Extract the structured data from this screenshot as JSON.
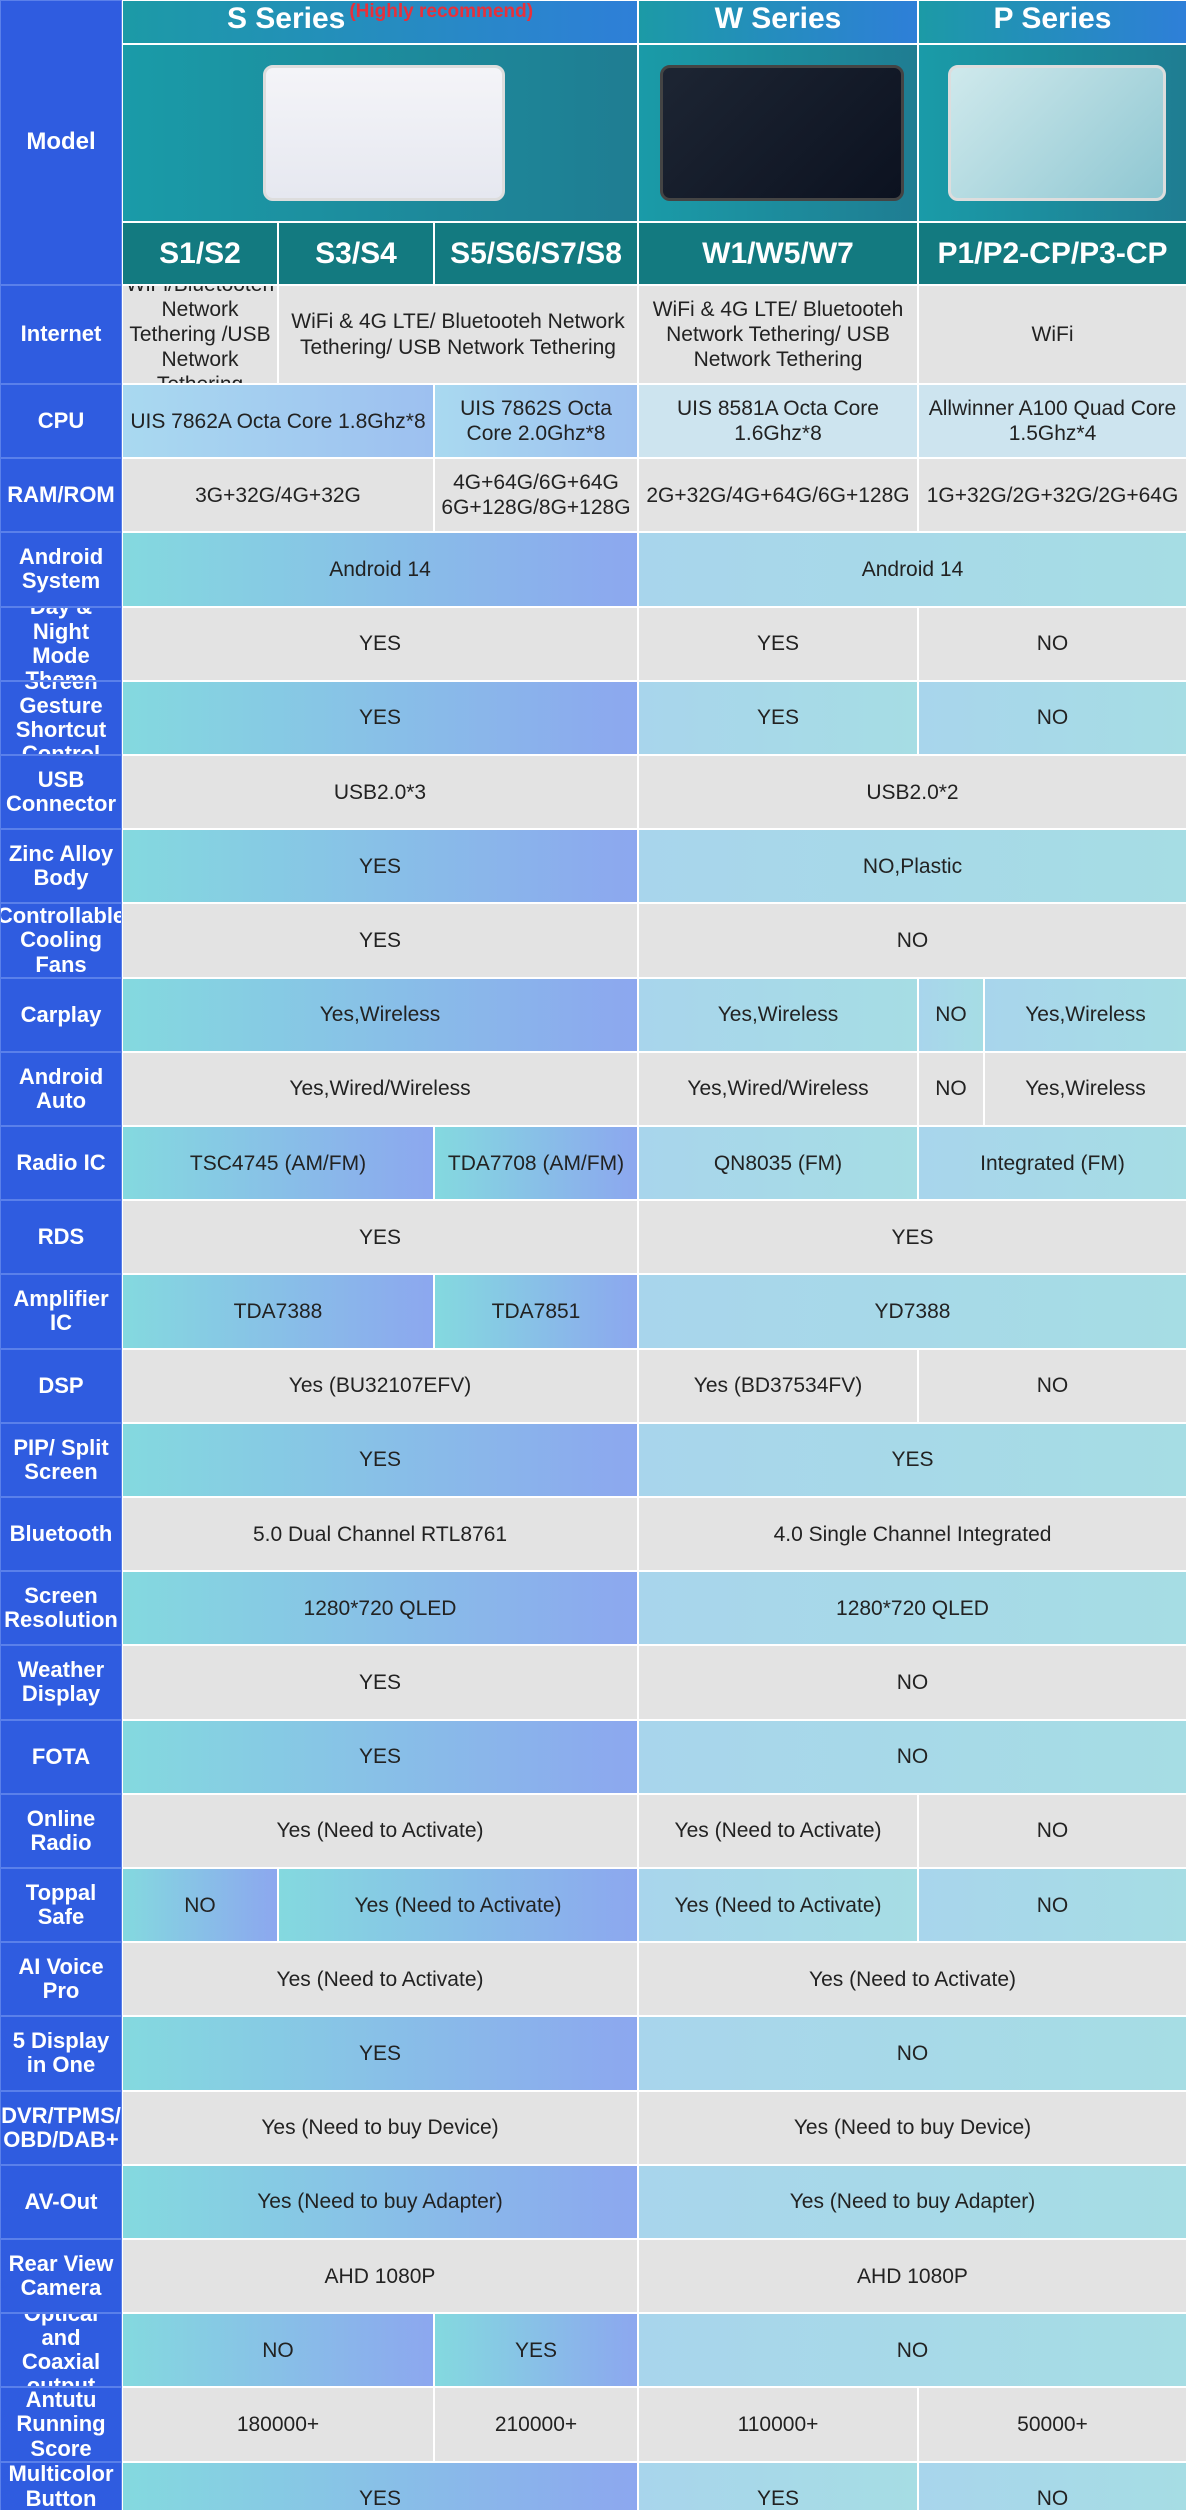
{
  "header": {
    "model_label": "Model",
    "series": [
      {
        "name": "S Series",
        "note": "(Highly recommend)"
      },
      {
        "name": "W Series"
      },
      {
        "name": "P Series"
      }
    ],
    "models": [
      "S1/S2",
      "S3/S4",
      "S5/S6/S7/S8",
      "W1/W5/W7",
      "P1/P2-CP/P3-CP"
    ]
  },
  "rows": [
    {
      "label": "Internet",
      "cells": [
        "WiFi/Bluetooteh Network Tethering /USB Network Tethering",
        "WiFi & 4G LTE/ Bluetooteh Network Tethering/ USB Network Tethering",
        "WiFi & 4G LTE/ Bluetooteh Network Tethering/ USB Network Tethering",
        "WiFi"
      ]
    },
    {
      "label": "CPU",
      "cells": [
        "UIS 7862A Octa Core 1.8Ghz*8",
        "UIS 7862S Octa Core 2.0Ghz*8",
        "UIS 8581A Octa Core 1.6Ghz*8",
        "Allwinner A100 Quad Core 1.5Ghz*4"
      ]
    },
    {
      "label": "RAM/ROM",
      "cells": [
        "3G+32G/4G+32G",
        "4G+64G/6G+64G 6G+128G/8G+128G",
        "2G+32G/4G+64G/6G+128G",
        "1G+32G/2G+32G/2G+64G"
      ]
    },
    {
      "label": "Android System",
      "cells": [
        "Android 14",
        "Android 14"
      ]
    },
    {
      "label": "Day & Night Mode Theme",
      "cells": [
        "YES",
        "YES",
        "NO"
      ]
    },
    {
      "label": "Screen Gesture Shortcut Control",
      "cells": [
        "YES",
        "YES",
        "NO"
      ]
    },
    {
      "label": "USB Connector",
      "cells": [
        "USB2.0*3",
        "USB2.0*2"
      ]
    },
    {
      "label": "Zinc Alloy Body",
      "cells": [
        "YES",
        "NO,Plastic"
      ]
    },
    {
      "label": "Controllable Cooling Fans",
      "cells": [
        "YES",
        "NO"
      ]
    },
    {
      "label": "Carplay",
      "cells": [
        "Yes,Wireless",
        "Yes,Wireless",
        "NO",
        "Yes,Wireless"
      ]
    },
    {
      "label": "Android Auto",
      "cells": [
        "Yes,Wired/Wireless",
        "Yes,Wired/Wireless",
        "NO",
        "Yes,Wireless"
      ]
    },
    {
      "label": "Radio IC",
      "cells": [
        "TSC4745 (AM/FM)",
        "TDA7708 (AM/FM)",
        "QN8035 (FM)",
        "Integrated (FM)"
      ]
    },
    {
      "label": "RDS",
      "cells": [
        "YES",
        "YES"
      ]
    },
    {
      "label": "Amplifier IC",
      "cells": [
        "TDA7388",
        "TDA7851",
        "YD7388"
      ]
    },
    {
      "label": "DSP",
      "cells": [
        "Yes (BU32107EFV)",
        "Yes (BD37534FV)",
        "NO"
      ]
    },
    {
      "label": "PIP/ Split Screen",
      "cells": [
        "YES",
        "YES"
      ]
    },
    {
      "label": "Bluetooth",
      "cells": [
        "5.0 Dual Channel RTL8761",
        "4.0 Single Channel Integrated"
      ]
    },
    {
      "label": "Screen Resolution",
      "cells": [
        "1280*720 QLED",
        "1280*720 QLED"
      ]
    },
    {
      "label": "Weather Display",
      "cells": [
        "YES",
        "NO"
      ]
    },
    {
      "label": "FOTA",
      "cells": [
        "YES",
        "NO"
      ]
    },
    {
      "label": "Online Radio",
      "cells": [
        "Yes (Need to Activate)",
        "Yes (Need to Activate)",
        "NO"
      ]
    },
    {
      "label": "Toppal Safe",
      "cells": [
        "NO",
        "Yes (Need to Activate)",
        "Yes (Need to Activate)",
        "NO"
      ]
    },
    {
      "label": "AI Voice Pro",
      "cells": [
        "Yes (Need to Activate)",
        "Yes (Need to Activate)"
      ]
    },
    {
      "label": "5 Display in One",
      "cells": [
        "YES",
        "NO"
      ]
    },
    {
      "label": "DVR/TPMS/ OBD/DAB+",
      "cells": [
        "Yes (Need to buy Device)",
        "Yes (Need to buy Device)"
      ]
    },
    {
      "label": "AV-Out",
      "cells": [
        "Yes (Need to buy Adapter)",
        "Yes (Need to buy Adapter)"
      ]
    },
    {
      "label": "Rear View Camera",
      "cells": [
        "AHD 1080P",
        "AHD 1080P"
      ]
    },
    {
      "label": "Optical and Coaxial output",
      "cells": [
        "NO",
        "YES",
        "NO"
      ]
    },
    {
      "label": "Antutu Running Score",
      "cells": [
        "180000+",
        "210000+",
        "110000+",
        "50000+"
      ]
    },
    {
      "label": "Multicolor Button light",
      "cells": [
        "YES",
        "YES",
        "NO"
      ]
    }
  ]
}
